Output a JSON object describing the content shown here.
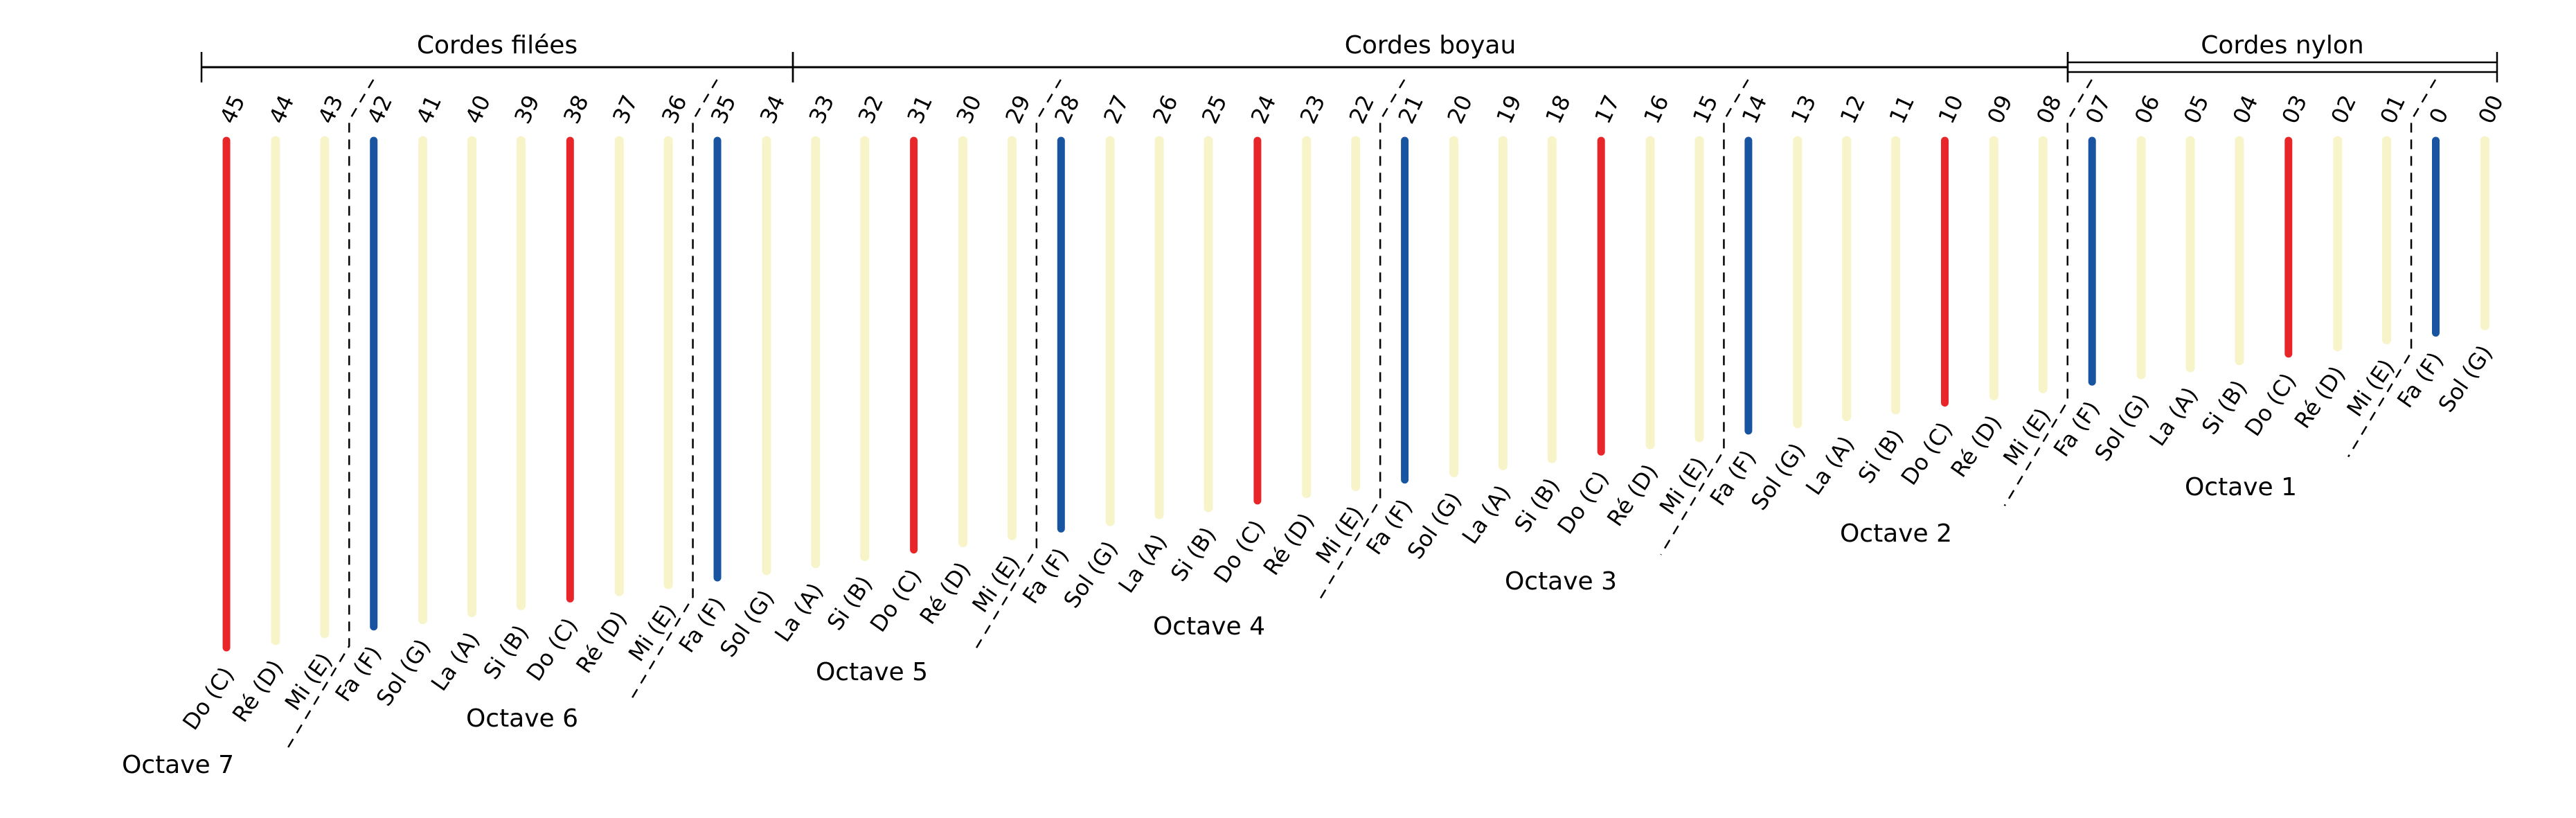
{
  "colors": {
    "do": "#e8262a",
    "fa": "#1854a0",
    "other": "#f7f4c9",
    "line": "#000000"
  },
  "sections": [
    {
      "label": "Cordes filées",
      "from": "45",
      "to": "34"
    },
    {
      "label": "Cordes boyau",
      "from": "33",
      "to": "08"
    },
    {
      "label": "Cordes nylon",
      "from": "07",
      "to": "00"
    }
  ],
  "strings": [
    {
      "num": "45",
      "note": "Do (C)",
      "kind": "do"
    },
    {
      "num": "44",
      "note": "Ré (D)",
      "kind": "other"
    },
    {
      "num": "43",
      "note": "Mi (E)",
      "kind": "other"
    },
    {
      "num": "42",
      "note": "Fa (F)",
      "kind": "fa"
    },
    {
      "num": "41",
      "note": "Sol (G)",
      "kind": "other"
    },
    {
      "num": "40",
      "note": "La (A)",
      "kind": "other"
    },
    {
      "num": "39",
      "note": "Si (B)",
      "kind": "other"
    },
    {
      "num": "38",
      "note": "Do (C)",
      "kind": "do"
    },
    {
      "num": "37",
      "note": "Ré (D)",
      "kind": "other"
    },
    {
      "num": "36",
      "note": "Mi (E)",
      "kind": "other"
    },
    {
      "num": "35",
      "note": "Fa (F)",
      "kind": "fa"
    },
    {
      "num": "34",
      "note": "Sol (G)",
      "kind": "other"
    },
    {
      "num": "33",
      "note": "La (A)",
      "kind": "other"
    },
    {
      "num": "32",
      "note": "Si (B)",
      "kind": "other"
    },
    {
      "num": "31",
      "note": "Do (C)",
      "kind": "do"
    },
    {
      "num": "30",
      "note": "Ré (D)",
      "kind": "other"
    },
    {
      "num": "29",
      "note": "Mi (E)",
      "kind": "other"
    },
    {
      "num": "28",
      "note": "Fa (F)",
      "kind": "fa"
    },
    {
      "num": "27",
      "note": "Sol (G)",
      "kind": "other"
    },
    {
      "num": "26",
      "note": "La (A)",
      "kind": "other"
    },
    {
      "num": "25",
      "note": "Si (B)",
      "kind": "other"
    },
    {
      "num": "24",
      "note": "Do (C)",
      "kind": "do"
    },
    {
      "num": "23",
      "note": "Ré (D)",
      "kind": "other"
    },
    {
      "num": "22",
      "note": "Mi (E)",
      "kind": "other"
    },
    {
      "num": "21",
      "note": "Fa (F)",
      "kind": "fa"
    },
    {
      "num": "20",
      "note": "Sol (G)",
      "kind": "other"
    },
    {
      "num": "19",
      "note": "La (A)",
      "kind": "other"
    },
    {
      "num": "18",
      "note": "Si (B)",
      "kind": "other"
    },
    {
      "num": "17",
      "note": "Do (C)",
      "kind": "do"
    },
    {
      "num": "16",
      "note": "Ré (D)",
      "kind": "other"
    },
    {
      "num": "15",
      "note": "Mi (E)",
      "kind": "other"
    },
    {
      "num": "14",
      "note": "Fa (F)",
      "kind": "fa"
    },
    {
      "num": "13",
      "note": "Sol (G)",
      "kind": "other"
    },
    {
      "num": "12",
      "note": "La (A)",
      "kind": "other"
    },
    {
      "num": "11",
      "note": "Si (B)",
      "kind": "other"
    },
    {
      "num": "10",
      "note": "Do (C)",
      "kind": "do"
    },
    {
      "num": "09",
      "note": "Ré (D)",
      "kind": "other"
    },
    {
      "num": "08",
      "note": "Mi (E)",
      "kind": "other"
    },
    {
      "num": "07",
      "note": "Fa (F)",
      "kind": "fa"
    },
    {
      "num": "06",
      "note": "Sol (G)",
      "kind": "other"
    },
    {
      "num": "05",
      "note": "La (A)",
      "kind": "other"
    },
    {
      "num": "04",
      "note": "Si (B)",
      "kind": "other"
    },
    {
      "num": "03",
      "note": "Do (C)",
      "kind": "do"
    },
    {
      "num": "02",
      "note": "Ré (D)",
      "kind": "other"
    },
    {
      "num": "01",
      "note": "Mi (E)",
      "kind": "other"
    },
    {
      "num": "0",
      "note": "Fa (F)",
      "kind": "fa"
    },
    {
      "num": "00",
      "note": "Sol (G)",
      "kind": "other"
    }
  ],
  "octaves": [
    {
      "label": "Octave 7",
      "from": "45",
      "to": "43"
    },
    {
      "label": "Octave 6",
      "from": "42",
      "to": "36"
    },
    {
      "label": "Octave 5",
      "from": "35",
      "to": "29"
    },
    {
      "label": "Octave 4",
      "from": "28",
      "to": "22"
    },
    {
      "label": "Octave 3",
      "from": "21",
      "to": "15"
    },
    {
      "label": "Octave 2",
      "from": "14",
      "to": "08"
    },
    {
      "label": "Octave 1",
      "from": "07",
      "to": "01"
    }
  ]
}
